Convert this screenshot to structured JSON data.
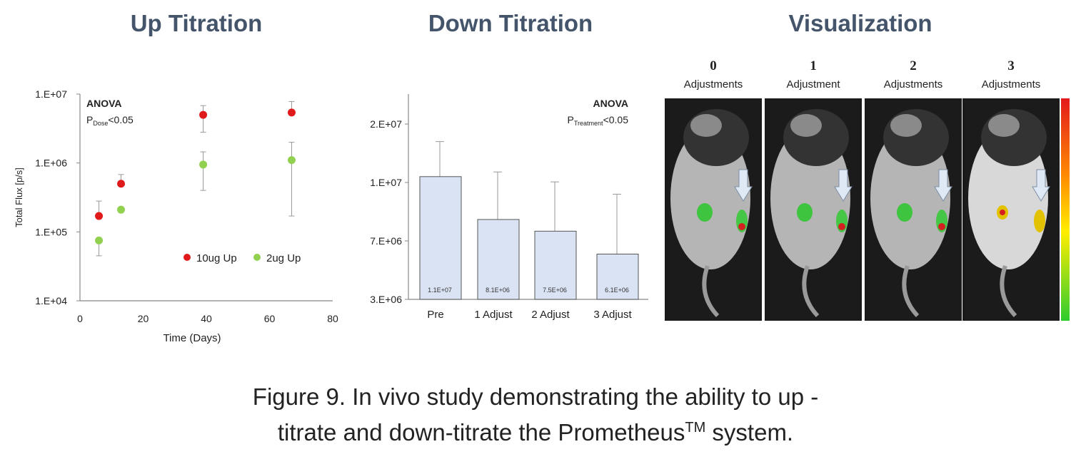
{
  "panels": {
    "up_title": "Up Titration",
    "down_title": "Down Titration",
    "vis_title": "Visualization"
  },
  "chart_data": [
    {
      "type": "scatter",
      "title": "Up Titration",
      "xlabel": "Time (Days)",
      "ylabel": "Total Flux [p/s]",
      "xlim": [
        0,
        80
      ],
      "ylim": [
        10000,
        10000000
      ],
      "yscale": "log",
      "xticks": [
        "0",
        "20",
        "40",
        "60",
        "80"
      ],
      "yticks": [
        "1.E+04",
        "1.E+05",
        "1.E+06",
        "1.E+07"
      ],
      "legend_position": "center-right",
      "annotation": {
        "line1": "ANOVA",
        "p": "P",
        "sub": "Dose",
        "rest": "<0.05"
      },
      "series": [
        {
          "name": "10ug Up",
          "color": "#e01a1a",
          "x": [
            6,
            13,
            39,
            67
          ],
          "y": [
            170000,
            500000,
            5000000,
            5400000
          ],
          "err_low": [
            170000,
            500000,
            2800000,
            5400000
          ],
          "err_high": [
            280000,
            680000,
            6800000,
            7800000
          ]
        },
        {
          "name": "2ug Up",
          "color": "#92d050",
          "x": [
            6,
            13,
            39,
            67
          ],
          "y": [
            75000,
            210000,
            950000,
            1100000
          ],
          "err_low": [
            45000,
            210000,
            400000,
            170000
          ],
          "err_high": [
            75000,
            210000,
            1450000,
            2000000
          ]
        }
      ]
    },
    {
      "type": "bar",
      "title": "Down Titration",
      "categories": [
        "Pre",
        "1 Adjust",
        "2 Adjust",
        "3 Adjust"
      ],
      "values": [
        11000000,
        8100000,
        7500000,
        6100000
      ],
      "bar_labels": [
        "1.1E+07",
        "8.1E+06",
        "7.5E+06",
        "6.1E+06"
      ],
      "err_high": [
        17000000,
        11800000,
        10100000,
        9400000
      ],
      "yticks": [
        "3.E+06",
        "7.E+06",
        "1.E+07",
        "2.E+07"
      ],
      "ylim": [
        3000000,
        20000000
      ],
      "color": "#dae3f3",
      "annotation": {
        "line1": "ANOVA",
        "p": "P",
        "sub": "Treatment",
        "rest": "<0.05"
      }
    }
  ],
  "visualization": {
    "frames": [
      {
        "num": "0",
        "label": "Adjustments"
      },
      {
        "num": "1",
        "label": "Adjustment"
      },
      {
        "num": "2",
        "label": "Adjustments"
      },
      {
        "num": "3",
        "label": "Adjustments"
      }
    ]
  },
  "caption": {
    "line1": "Figure 9. In vivo study demonstrating the ability to up -",
    "line2a": "titrate and down-titrate the Prometheus",
    "tm": "TM",
    "line2b": " system."
  }
}
